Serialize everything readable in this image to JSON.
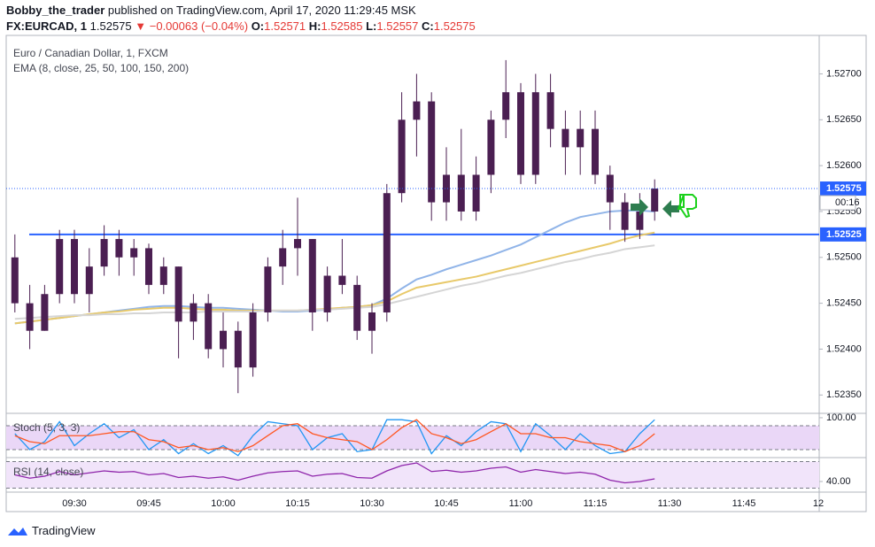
{
  "header": {
    "author": "Bobby_the_trader",
    "published": "published on TradingView.com, April 17, 2020 11:29:45 MSK",
    "symbol": "FX:EURCAD, 1",
    "price": "1.52575",
    "change": "▼ −0.00063 (−0.04%)",
    "ohlc": [
      {
        "label": "O:",
        "value": "1.52571"
      },
      {
        "label": "H:",
        "value": "1.52585"
      },
      {
        "label": "L:",
        "value": "1.52557"
      },
      {
        "label": "C:",
        "value": "1.52575"
      }
    ]
  },
  "footer": {
    "brand": "TradingView"
  },
  "chart_data": [
    {
      "type": "candlestick",
      "title": "Euro / Canadian Dollar, 1, FXCM",
      "subtitle": "EMA (8, close, 25, 50, 100, 150, 200)",
      "categories": [
        null,
        null,
        null,
        null,
        "09:30",
        null,
        null,
        null,
        null,
        "09:45",
        null,
        null,
        null,
        null,
        "10:00",
        null,
        null,
        null,
        null,
        "10:15",
        null,
        null,
        null,
        null,
        "10:30",
        null,
        null,
        null,
        null,
        "10:45",
        null,
        null,
        null,
        null,
        "11:00",
        null,
        null,
        null,
        null,
        "11:15",
        null,
        null,
        null,
        null,
        "11:30",
        null,
        null,
        null,
        null,
        "11:45",
        null,
        null,
        null,
        null,
        "12"
      ],
      "ohlc": [
        [
          1.525,
          1.52525,
          1.5244,
          1.5245
        ],
        [
          1.5245,
          1.5247,
          1.524,
          1.5242
        ],
        [
          1.5242,
          1.5247,
          1.5242,
          1.5246
        ],
        [
          1.5246,
          1.5253,
          1.5245,
          1.5252
        ],
        [
          1.5252,
          1.5253,
          1.5245,
          1.5246
        ],
        [
          1.5246,
          1.5251,
          1.5244,
          1.5249
        ],
        [
          1.5249,
          1.52535,
          1.5248,
          1.5252
        ],
        [
          1.5252,
          1.5253,
          1.5248,
          1.525
        ],
        [
          1.525,
          1.5252,
          1.5248,
          1.5251
        ],
        [
          1.5251,
          1.52515,
          1.5246,
          1.5247
        ],
        [
          1.5247,
          1.525,
          1.5246,
          1.5249
        ],
        [
          1.5249,
          1.5249,
          1.5239,
          1.5243
        ],
        [
          1.5243,
          1.5246,
          1.5241,
          1.5245
        ],
        [
          1.5245,
          1.5246,
          1.5239,
          1.524
        ],
        [
          1.524,
          1.5244,
          1.5238,
          1.5242
        ],
        [
          1.5242,
          1.5243,
          1.52352,
          1.5238
        ],
        [
          1.5238,
          1.5245,
          1.5237,
          1.5244
        ],
        [
          1.5244,
          1.525,
          1.5243,
          1.5249
        ],
        [
          1.5249,
          1.5253,
          1.5247,
          1.5251
        ],
        [
          1.5251,
          1.52565,
          1.5248,
          1.5252
        ],
        [
          1.5252,
          1.5252,
          1.5242,
          1.5244
        ],
        [
          1.5244,
          1.5249,
          1.5243,
          1.5248
        ],
        [
          1.5248,
          1.5252,
          1.5246,
          1.5247
        ],
        [
          1.5247,
          1.5248,
          1.5241,
          1.5242
        ],
        [
          1.5242,
          1.5245,
          1.52395,
          1.5244
        ],
        [
          1.5244,
          1.5258,
          1.5243,
          1.5257
        ],
        [
          1.5257,
          1.5268,
          1.5256,
          1.5265
        ],
        [
          1.5265,
          1.527,
          1.5261,
          1.5267
        ],
        [
          1.5267,
          1.5268,
          1.5254,
          1.5256
        ],
        [
          1.5256,
          1.5262,
          1.5254,
          1.5259
        ],
        [
          1.5259,
          1.5264,
          1.5254,
          1.5255
        ],
        [
          1.5255,
          1.5261,
          1.5254,
          1.5259
        ],
        [
          1.5259,
          1.5266,
          1.5257,
          1.5265
        ],
        [
          1.5265,
          1.52715,
          1.5263,
          1.5268
        ],
        [
          1.5268,
          1.5269,
          1.5258,
          1.5259
        ],
        [
          1.5259,
          1.527,
          1.5258,
          1.5268
        ],
        [
          1.5268,
          1.527,
          1.5262,
          1.5264
        ],
        [
          1.5264,
          1.5266,
          1.5259,
          1.5262
        ],
        [
          1.5262,
          1.5266,
          1.5259,
          1.5264
        ],
        [
          1.5264,
          1.5266,
          1.5258,
          1.5259
        ],
        [
          1.5259,
          1.526,
          1.5253,
          1.5256
        ],
        [
          1.5256,
          1.5257,
          1.52517,
          1.5253
        ],
        [
          1.5253,
          1.5257,
          1.5252,
          1.5255
        ],
        [
          1.5255,
          1.52585,
          1.5254,
          1.52575
        ],
        null,
        null,
        null,
        null,
        null,
        null,
        null,
        null,
        null,
        null,
        null
      ],
      "up_color": "#4b1f52",
      "down_color": "#4b1f52",
      "series": [
        {
          "color": "#90b4e8",
          "values": [
            1.52428,
            1.5243,
            1.52432,
            1.52434,
            1.52436,
            1.52438,
            1.5244,
            1.52442,
            1.52444,
            1.52446,
            1.52447,
            1.52447,
            1.52446,
            1.52445,
            1.52445,
            1.52444,
            1.52443,
            1.52442,
            1.52441,
            1.52441,
            1.52442,
            1.52443,
            1.52445,
            1.52446,
            1.52448,
            1.52455,
            1.52466,
            1.52476,
            1.52481,
            1.52487,
            1.52492,
            1.52497,
            1.52502,
            1.52508,
            1.52514,
            1.52522,
            1.5253,
            1.52538,
            1.52544,
            1.52547,
            1.5255,
            1.52551,
            1.52551,
            1.5255,
            null,
            null,
            null,
            null,
            null,
            null,
            null,
            null,
            null,
            null,
            null
          ]
        },
        {
          "color": "#e8c96a",
          "values": [
            1.52428,
            1.5243,
            1.52432,
            1.52434,
            1.52436,
            1.52438,
            1.5244,
            1.52441,
            1.52443,
            1.52444,
            1.52445,
            1.52445,
            1.52444,
            1.52443,
            1.52443,
            1.52442,
            1.52442,
            1.52442,
            1.52442,
            1.52442,
            1.52443,
            1.52444,
            1.52445,
            1.52446,
            1.52448,
            1.52452,
            1.5246,
            1.52467,
            1.5247,
            1.52473,
            1.52476,
            1.52479,
            1.52483,
            1.52487,
            1.52491,
            1.52495,
            1.52499,
            1.52503,
            1.52507,
            1.52511,
            1.52515,
            1.5252,
            1.52524,
            1.52527,
            null,
            null,
            null,
            null,
            null,
            null,
            null,
            null,
            null,
            null,
            null
          ]
        },
        {
          "color": "#d5d5d5",
          "values": [
            1.52433,
            1.52434,
            1.52435,
            1.52436,
            1.52437,
            1.52437,
            1.52438,
            1.52438,
            1.52439,
            1.52439,
            1.5244,
            1.5244,
            1.5244,
            1.52441,
            1.52441,
            1.52441,
            1.52441,
            1.52442,
            1.52442,
            1.52442,
            1.52443,
            1.52443,
            1.52444,
            1.52445,
            1.52446,
            1.52449,
            1.52453,
            1.52457,
            1.52461,
            1.52465,
            1.52469,
            1.52472,
            1.52476,
            1.5248,
            1.52483,
            1.52487,
            1.52491,
            1.52495,
            1.52498,
            1.52502,
            1.52505,
            1.52509,
            1.52511,
            1.52513,
            null,
            null,
            null,
            null,
            null,
            null,
            null,
            null,
            null,
            null,
            null
          ]
        }
      ],
      "ylim": [
        1.5233,
        1.5274
      ],
      "yticks": [
        {
          "value": 1.5235,
          "label": "1.52350"
        },
        {
          "value": 1.524,
          "label": "1.52400"
        },
        {
          "value": 1.5245,
          "label": "1.52450"
        },
        {
          "value": 1.525,
          "label": "1.52500"
        },
        {
          "value": 1.5255,
          "label": "1.52550"
        },
        {
          "value": 1.526,
          "label": "1.52600"
        },
        {
          "value": 1.5265,
          "label": "1.52650"
        },
        {
          "value": 1.527,
          "label": "1.52700"
        }
      ],
      "hlines": [
        {
          "value": 1.52525,
          "label": "1.52525",
          "color": "#2962ff"
        }
      ],
      "last_price": {
        "value": 1.52575,
        "label": "1.52575",
        "countdown": "00:16",
        "color": "#2962ff"
      }
    },
    {
      "type": "line",
      "title": "Stoch (5, 3, 3)",
      "band_color": "#ead7f7",
      "series": [
        {
          "color": "#2196f3",
          "values": [
            60,
            20,
            40,
            90,
            30,
            60,
            85,
            50,
            70,
            20,
            45,
            10,
            35,
            10,
            30,
            5,
            55,
            90,
            85,
            80,
            20,
            50,
            60,
            15,
            20,
            95,
            95,
            90,
            10,
            55,
            30,
            65,
            90,
            85,
            15,
            85,
            55,
            20,
            60,
            30,
            10,
            15,
            60,
            95,
            null,
            null,
            null,
            null,
            null,
            null,
            null,
            null,
            null,
            null,
            null
          ]
        },
        {
          "color": "#ff5722",
          "values": [
            55,
            40,
            35,
            55,
            55,
            55,
            60,
            65,
            65,
            45,
            40,
            25,
            30,
            20,
            25,
            15,
            30,
            55,
            80,
            85,
            60,
            50,
            45,
            40,
            20,
            45,
            75,
            95,
            60,
            50,
            35,
            45,
            65,
            85,
            60,
            60,
            50,
            50,
            40,
            35,
            30,
            15,
            30,
            60,
            null,
            null,
            null,
            null,
            null,
            null,
            null,
            null,
            null,
            null,
            null
          ]
        }
      ],
      "ylim": [
        0,
        111
      ],
      "yticks": [
        {
          "value": 100,
          "label": "100.00"
        }
      ],
      "bands": [
        20,
        80
      ]
    },
    {
      "type": "line",
      "title": "RSI (14, close)",
      "band_color": "#f1e4fa",
      "series": [
        {
          "color": "#8e24aa",
          "values": [
            50,
            45,
            48,
            55,
            50,
            53,
            56,
            54,
            55,
            50,
            52,
            46,
            48,
            45,
            47,
            42,
            48,
            53,
            55,
            56,
            48,
            51,
            52,
            46,
            45,
            56,
            64,
            68,
            55,
            57,
            54,
            56,
            60,
            62,
            54,
            58,
            55,
            52,
            54,
            51,
            42,
            38,
            40,
            44,
            null,
            null,
            null,
            null,
            null,
            null,
            null,
            null,
            null,
            null,
            null
          ]
        }
      ],
      "ylim": [
        24,
        76
      ],
      "yticks": [
        {
          "value": 40,
          "label": "40.00"
        }
      ],
      "bands": [
        30,
        70
      ]
    }
  ]
}
